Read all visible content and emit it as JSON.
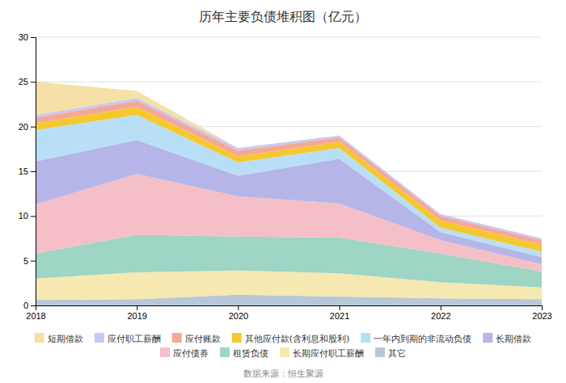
{
  "chart_data": {
    "type": "area",
    "stacked": true,
    "title": "历年主要负债堆积图（亿元）",
    "annotations": [
      "数据来源：恒生聚源"
    ],
    "x": [
      2018,
      2019,
      2020,
      2021,
      2022,
      2023
    ],
    "xlim": [
      2018,
      2023
    ],
    "xticks": [
      2018,
      2019,
      2020,
      2021,
      2022,
      2023
    ],
    "ylim": [
      0,
      30
    ],
    "yticks": [
      0,
      5,
      10,
      15,
      20,
      25,
      30
    ],
    "grid": true,
    "legend": "bottom",
    "series": [
      {
        "name": "其它",
        "color": "#b8c8d8",
        "values": [
          0.6,
          0.7,
          1.2,
          1.0,
          0.8,
          0.7
        ]
      },
      {
        "name": "长期应付职工薪酬",
        "color": "#f5e8b0",
        "values": [
          2.4,
          3.0,
          2.7,
          2.6,
          1.8,
          1.3
        ]
      },
      {
        "name": "租赁负债",
        "color": "#9ed5c5",
        "values": [
          2.8,
          4.2,
          3.8,
          4.0,
          3.2,
          1.8
        ]
      },
      {
        "name": "应付债券",
        "color": "#f5bfc8",
        "values": [
          5.5,
          6.8,
          4.5,
          3.8,
          1.5,
          0.8
        ]
      },
      {
        "name": "长期借款",
        "color": "#b5b5e8",
        "values": [
          4.8,
          3.8,
          2.3,
          5.0,
          0.9,
          0.8
        ]
      },
      {
        "name": "一年内到期的非流动负债",
        "color": "#b8dff5",
        "values": [
          3.5,
          2.8,
          1.5,
          1.2,
          0.5,
          0.6
        ]
      },
      {
        "name": "其他应付款(含利息和股利)",
        "color": "#f5c830",
        "values": [
          0.8,
          0.9,
          0.7,
          0.7,
          0.8,
          0.8
        ]
      },
      {
        "name": "应付账款",
        "color": "#f5a898",
        "values": [
          0.6,
          0.7,
          0.6,
          0.5,
          0.5,
          0.5
        ]
      },
      {
        "name": "应付职工薪酬",
        "color": "#c8c8f0",
        "values": [
          0.3,
          0.3,
          0.3,
          0.2,
          0.2,
          0.2
        ]
      },
      {
        "name": "短期借款",
        "color": "#f5e0a8",
        "values": [
          3.7,
          0.8,
          0.0,
          0.0,
          0.0,
          0.0
        ]
      }
    ]
  }
}
